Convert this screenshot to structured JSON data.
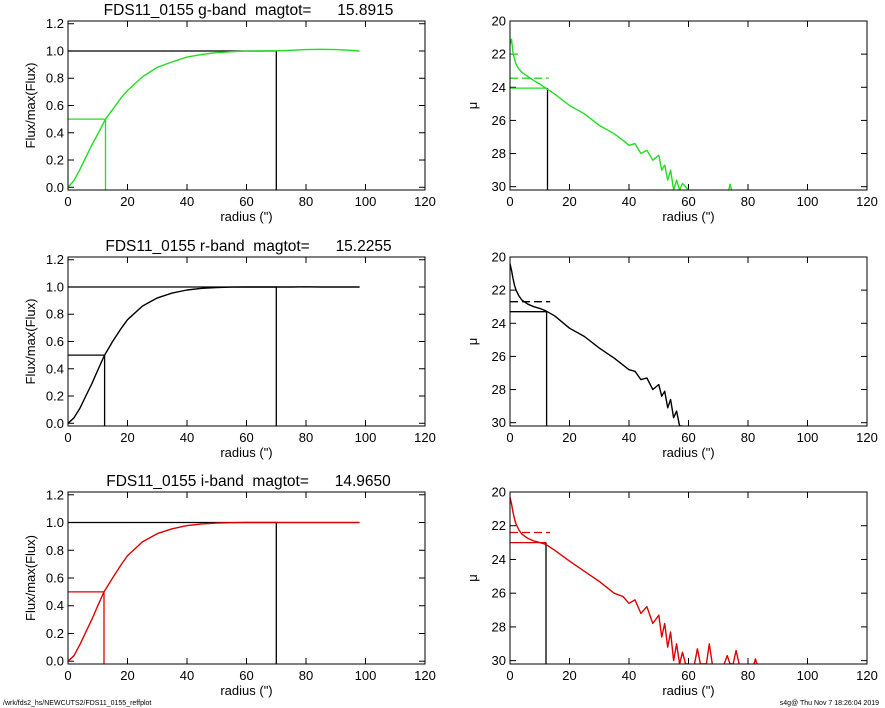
{
  "footer": {
    "left": "/wrk/fds2_hs/NEWCUTS2/FDS11_0155_reffplot",
    "right": "s4g@  Thu Nov  7 18:26:04 2019"
  },
  "colors": {
    "g": "#22dd22",
    "r": "#000000",
    "i": "#dd0000",
    "axes": "#000000"
  },
  "chart_data": [
    {
      "type": "line",
      "panel": "g-growth",
      "title": "FDS11_0155 g-band  magtot=      15.8915",
      "xlabel": "radius (\")",
      "ylabel": "Flux/max(Flux)",
      "xlim": [
        0,
        120
      ],
      "ylim": [
        -0.02,
        1.22
      ],
      "xticks": [
        0,
        20,
        40,
        60,
        80,
        100,
        120
      ],
      "yticks": [
        0.0,
        0.2,
        0.4,
        0.6,
        0.8,
        1.0,
        1.2
      ],
      "ytick_labels": [
        "0.0",
        "0.2",
        "0.4",
        "0.6",
        "0.8",
        "1.0",
        "1.2"
      ],
      "series": [
        {
          "color": "#22dd22",
          "x": [
            0,
            2,
            4,
            6,
            8,
            10,
            12.6,
            15,
            18,
            20,
            25,
            30,
            35,
            40,
            45,
            50,
            55,
            60,
            65,
            70,
            75,
            80,
            85,
            90,
            95,
            98
          ],
          "y": [
            0.0,
            0.05,
            0.13,
            0.22,
            0.31,
            0.39,
            0.5,
            0.57,
            0.66,
            0.71,
            0.81,
            0.88,
            0.92,
            0.955,
            0.975,
            0.988,
            0.995,
            0.999,
            1.0,
            1.001,
            1.005,
            1.01,
            1.012,
            1.01,
            1.005,
            1.0
          ]
        }
      ],
      "ref_lines": [
        {
          "color": "#000000",
          "points": [
            [
              0,
              1.0
            ],
            [
              70,
              1.0
            ],
            [
              70,
              -0.02
            ]
          ]
        },
        {
          "color": "#22dd22",
          "points": [
            [
              0,
              0.5
            ],
            [
              12.6,
              0.5
            ],
            [
              12.6,
              -0.02
            ]
          ]
        }
      ]
    },
    {
      "type": "line",
      "panel": "g-profile",
      "title": "",
      "xlabel": "radius (\")",
      "ylabel": "μ",
      "xlim": [
        0,
        120
      ],
      "ylim": [
        30.2,
        20
      ],
      "y_inverted": true,
      "xticks": [
        0,
        20,
        40,
        60,
        80,
        100,
        120
      ],
      "yticks": [
        20,
        22,
        24,
        26,
        28,
        30
      ],
      "series": [
        {
          "color": "#22dd22",
          "x": [
            0,
            0.5,
            1,
            1.5,
            2,
            3,
            4,
            6,
            8,
            10,
            12,
            15,
            20,
            25,
            30,
            35,
            38,
            40,
            42,
            44,
            46,
            48,
            50,
            51,
            52,
            53,
            54,
            55,
            56,
            57,
            58,
            60
          ],
          "y": [
            21.4,
            21.1,
            21.9,
            22.3,
            22.6,
            22.9,
            23.1,
            23.35,
            23.6,
            23.8,
            24.05,
            24.4,
            25.1,
            25.6,
            26.3,
            26.8,
            27.2,
            27.5,
            27.4,
            28.0,
            27.8,
            28.4,
            28.1,
            29.0,
            28.7,
            29.6,
            29.0,
            30.2,
            29.6,
            30.2,
            29.8,
            30.2
          ]
        },
        {
          "color": "#22dd22",
          "x": [
            73.5,
            74,
            74.5
          ],
          "y": [
            30.2,
            29.85,
            30.2
          ]
        }
      ],
      "ref_lines": [
        {
          "color": "#22dd22",
          "dash": true,
          "points": [
            [
              0,
              22.0
            ],
            [
              3.5,
              22.0
            ]
          ]
        },
        {
          "color": "#22dd22",
          "dash": true,
          "points": [
            [
              0,
              23.45
            ],
            [
              13,
              23.45
            ]
          ]
        },
        {
          "color": "#22dd22",
          "points": [
            [
              0,
              24.05
            ],
            [
              12.6,
              24.05
            ]
          ]
        },
        {
          "color": "#000000",
          "points": [
            [
              12.6,
              24.05
            ],
            [
              12.6,
              30.2
            ]
          ]
        }
      ]
    },
    {
      "type": "line",
      "panel": "r-growth",
      "title": "FDS11_0155 r-band  magtot=      15.2255",
      "xlabel": "radius (\")",
      "ylabel": "Flux/max(Flux)",
      "xlim": [
        0,
        120
      ],
      "ylim": [
        -0.02,
        1.22
      ],
      "xticks": [
        0,
        20,
        40,
        60,
        80,
        100,
        120
      ],
      "yticks": [
        0.0,
        0.2,
        0.4,
        0.6,
        0.8,
        1.0,
        1.2
      ],
      "ytick_labels": [
        "0.0",
        "0.2",
        "0.4",
        "0.6",
        "0.8",
        "1.0",
        "1.2"
      ],
      "series": [
        {
          "color": "#000000",
          "x": [
            0,
            2,
            4,
            6,
            8,
            10,
            12.3,
            15,
            18,
            20,
            25,
            30,
            35,
            40,
            45,
            50,
            55,
            60,
            65,
            70,
            75,
            80,
            85,
            90,
            95,
            98
          ],
          "y": [
            0.0,
            0.04,
            0.11,
            0.2,
            0.29,
            0.39,
            0.5,
            0.6,
            0.7,
            0.76,
            0.86,
            0.92,
            0.955,
            0.978,
            0.99,
            0.996,
            0.999,
            1.0,
            1.0,
            1.0,
            1.0,
            1.001,
            1.0,
            1.0,
            1.0,
            1.0
          ]
        }
      ],
      "ref_lines": [
        {
          "color": "#000000",
          "points": [
            [
              0,
              1.0
            ],
            [
              70,
              1.0
            ],
            [
              70,
              -0.02
            ]
          ]
        },
        {
          "color": "#000000",
          "points": [
            [
              0,
              0.5
            ],
            [
              12.3,
              0.5
            ],
            [
              12.3,
              -0.02
            ]
          ]
        }
      ]
    },
    {
      "type": "line",
      "panel": "r-profile",
      "title": "",
      "xlabel": "radius (\")",
      "ylabel": "μ",
      "xlim": [
        0,
        120
      ],
      "ylim": [
        30.2,
        20
      ],
      "y_inverted": true,
      "xticks": [
        0,
        20,
        40,
        60,
        80,
        100,
        120
      ],
      "yticks": [
        20,
        22,
        24,
        26,
        28,
        30
      ],
      "series": [
        {
          "color": "#000000",
          "x": [
            0,
            0.5,
            1,
            1.5,
            2,
            3,
            4,
            6,
            8,
            10,
            12,
            15,
            20,
            25,
            30,
            35,
            40,
            42,
            44,
            46,
            48,
            50,
            51,
            52,
            53,
            54,
            55,
            56,
            57,
            58
          ],
          "y": [
            20.4,
            20.8,
            21.3,
            21.7,
            22.0,
            22.35,
            22.6,
            22.85,
            23.0,
            23.1,
            23.25,
            23.55,
            24.3,
            24.8,
            25.5,
            26.1,
            26.8,
            26.9,
            27.4,
            27.3,
            28.0,
            27.7,
            28.4,
            28.1,
            29.1,
            28.6,
            29.7,
            29.3,
            30.2,
            30.2
          ]
        }
      ],
      "ref_lines": [
        {
          "color": "#000000",
          "dash": true,
          "points": [
            [
              0,
              22.7
            ],
            [
              13.5,
              22.7
            ]
          ]
        },
        {
          "color": "#000000",
          "points": [
            [
              0,
              23.3
            ],
            [
              12.3,
              23.3
            ],
            [
              12.3,
              30.2
            ]
          ]
        }
      ]
    },
    {
      "type": "line",
      "panel": "i-growth",
      "title": "FDS11_0155 i-band  magtot=      14.9650",
      "xlabel": "radius (\")",
      "ylabel": "Flux/max(Flux)",
      "xlim": [
        0,
        120
      ],
      "ylim": [
        -0.02,
        1.22
      ],
      "xticks": [
        0,
        20,
        40,
        60,
        80,
        100,
        120
      ],
      "yticks": [
        0.0,
        0.2,
        0.4,
        0.6,
        0.8,
        1.0,
        1.2
      ],
      "ytick_labels": [
        "0.0",
        "0.2",
        "0.4",
        "0.6",
        "0.8",
        "1.0",
        "1.2"
      ],
      "series": [
        {
          "color": "#dd0000",
          "x": [
            0,
            2,
            4,
            6,
            8,
            10,
            12.1,
            15,
            18,
            20,
            25,
            30,
            35,
            40,
            45,
            50,
            55,
            60,
            65,
            70,
            75,
            80,
            85,
            90,
            95,
            98
          ],
          "y": [
            0.0,
            0.04,
            0.12,
            0.21,
            0.3,
            0.4,
            0.5,
            0.6,
            0.7,
            0.76,
            0.86,
            0.92,
            0.955,
            0.978,
            0.99,
            0.996,
            0.999,
            1.0,
            1.0,
            1.0,
            1.0,
            1.0,
            1.0,
            1.0,
            1.0,
            1.0
          ]
        }
      ],
      "ref_lines": [
        {
          "color": "#000000",
          "points": [
            [
              0,
              1.0
            ],
            [
              70,
              1.0
            ],
            [
              70,
              -0.02
            ]
          ]
        },
        {
          "color": "#dd0000",
          "points": [
            [
              0,
              0.5
            ],
            [
              12.1,
              0.5
            ],
            [
              12.1,
              -0.02
            ]
          ]
        }
      ]
    },
    {
      "type": "line",
      "panel": "i-profile",
      "title": "",
      "xlabel": "radius (\")",
      "ylabel": "μ",
      "xlim": [
        0,
        120
      ],
      "ylim": [
        30.2,
        20
      ],
      "y_inverted": true,
      "xticks": [
        0,
        20,
        40,
        60,
        80,
        100,
        120
      ],
      "yticks": [
        20,
        22,
        24,
        26,
        28,
        30
      ],
      "series": [
        {
          "color": "#dd0000",
          "x": [
            0,
            0.5,
            1,
            1.5,
            2,
            3,
            4,
            6,
            8,
            10,
            12,
            15,
            20,
            25,
            30,
            35,
            38,
            40,
            42,
            44,
            46,
            48,
            50,
            51,
            52,
            53,
            54,
            55,
            56,
            57,
            58,
            59,
            60
          ],
          "y": [
            20.3,
            20.7,
            21.2,
            21.6,
            21.9,
            22.25,
            22.5,
            22.75,
            22.9,
            23.0,
            23.1,
            23.45,
            24.1,
            24.7,
            25.3,
            26.0,
            26.2,
            26.6,
            26.4,
            27.2,
            26.8,
            27.8,
            27.3,
            28.6,
            27.8,
            29.2,
            28.3,
            30.0,
            29.0,
            30.2,
            29.5,
            30.2,
            30.2
          ]
        },
        {
          "color": "#dd0000",
          "x": [
            62,
            63,
            64,
            66,
            67,
            68
          ],
          "y": [
            30.2,
            29.3,
            30.2,
            30.2,
            29.0,
            30.2
          ]
        },
        {
          "color": "#dd0000",
          "x": [
            72,
            73,
            74,
            75,
            76,
            77
          ],
          "y": [
            30.2,
            29.7,
            30.2,
            30.2,
            29.4,
            30.2
          ]
        },
        {
          "color": "#dd0000",
          "x": [
            82,
            82.5,
            83
          ],
          "y": [
            30.2,
            29.9,
            30.2
          ]
        }
      ],
      "ref_lines": [
        {
          "color": "#dd0000",
          "dash": true,
          "points": [
            [
              0,
              22.4
            ],
            [
              13.5,
              22.4
            ]
          ]
        },
        {
          "color": "#dd0000",
          "points": [
            [
              0,
              23.0
            ],
            [
              12.1,
              23.0
            ]
          ]
        },
        {
          "color": "#000000",
          "points": [
            [
              12.1,
              23.0
            ],
            [
              12.1,
              30.2
            ]
          ]
        }
      ]
    }
  ]
}
